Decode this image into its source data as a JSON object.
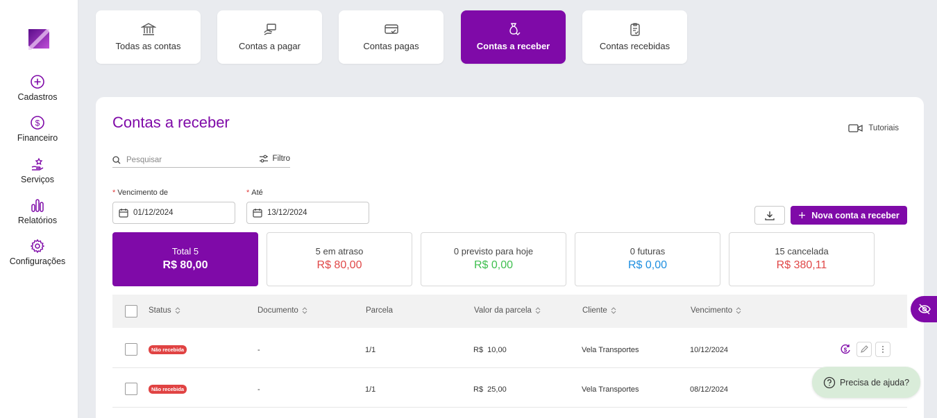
{
  "sidebar": {
    "items": [
      {
        "label": "Cadastros",
        "icon": "plus-circle-icon"
      },
      {
        "label": "Financeiro",
        "icon": "dollar-circle-icon"
      },
      {
        "label": "Serviços",
        "icon": "hand-star-icon"
      },
      {
        "label": "Relatórios",
        "icon": "bar-chart-icon"
      },
      {
        "label": "Configurações",
        "icon": "gear-icon"
      }
    ]
  },
  "tabs": [
    {
      "label": "Todas as contas",
      "icon": "bank-icon",
      "active": false
    },
    {
      "label": "Contas a pagar",
      "icon": "hand-money-icon",
      "active": false
    },
    {
      "label": "Contas pagas",
      "icon": "card-check-icon",
      "active": false
    },
    {
      "label": "Contas a receber",
      "icon": "money-bag-icon",
      "active": true
    },
    {
      "label": "Contas recebidas",
      "icon": "clipboard-check-icon",
      "active": false
    }
  ],
  "page": {
    "title": "Contas a receber",
    "tutorials_label": "Tutoriais",
    "search_placeholder": "Pesquisar",
    "filter_label": "Filtro",
    "due_from_label": "Vencimento de",
    "due_from_value": "01/12/2024",
    "due_to_label": "Até",
    "due_to_value": "13/12/2024",
    "new_button_label": "Nova conta a receber"
  },
  "summary": [
    {
      "label": "Total 5",
      "value": "R$ 80,00",
      "color": "#ffffff"
    },
    {
      "label": "5 em atraso",
      "value": "R$ 80,00",
      "color": "#e04848"
    },
    {
      "label": "0 previsto para hoje",
      "value": "R$ 0,00",
      "color": "#3fbf4f"
    },
    {
      "label": "0 futuras",
      "value": "R$ 0,00",
      "color": "#1e8fe0"
    },
    {
      "label": "15 cancelada",
      "value": "R$ 380,11",
      "color": "#e04848"
    }
  ],
  "table": {
    "columns": [
      "Status",
      "Documento",
      "Parcela",
      "Valor da parcela",
      "Cliente",
      "Vencimento"
    ],
    "rows": [
      {
        "status": "Não recebida",
        "documento": "-",
        "parcela": "1/1",
        "valor": "R$  10,00",
        "cliente": "Vela Transportes",
        "vencimento": "10/12/2024"
      },
      {
        "status": "Não recebida",
        "documento": "-",
        "parcela": "1/1",
        "valor": "R$  25,00",
        "cliente": "Vela Transportes",
        "vencimento": "08/12/2024"
      }
    ]
  },
  "help": {
    "label": "Precisa de ajuda?"
  },
  "colors": {
    "primary": "#7f0aa8",
    "danger": "#e04343",
    "success": "#3fbf4f",
    "info": "#1e8fe0",
    "help_bg": "#d9ecd9"
  }
}
